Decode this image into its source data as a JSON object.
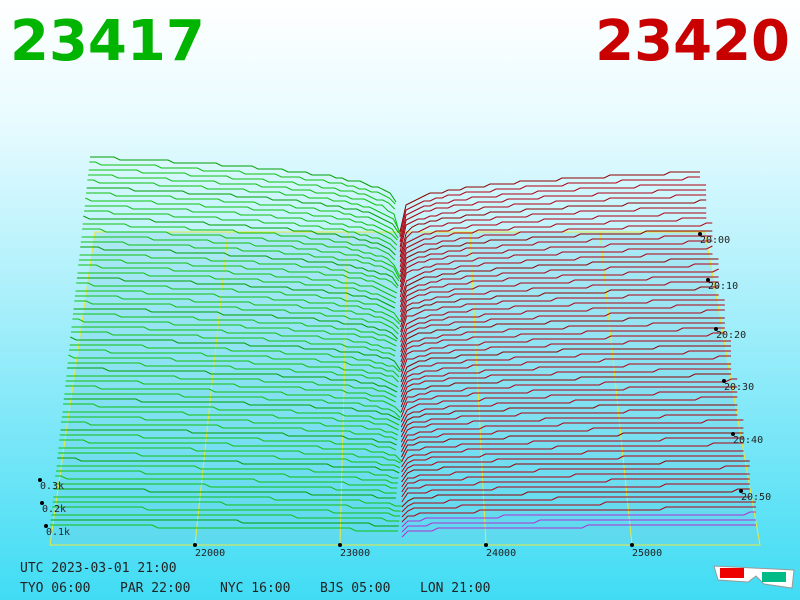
{
  "header": {
    "bid": "23417",
    "ask": "23420"
  },
  "axes": {
    "price_labels": [
      "22000",
      "23000",
      "24000",
      "25000"
    ],
    "depth_labels": [
      "0.3k",
      "0.2k",
      "0.1k"
    ],
    "time_labels": [
      "20:00",
      "20:10",
      "20:20",
      "20:30",
      "20:40",
      "20:50"
    ]
  },
  "footer": {
    "utc": "UTC 2023-03-01 21:00",
    "clocks": [
      "TYO 06:00",
      "PAR 22:00",
      "NYC 16:00",
      "BJS 05:00",
      "LON 21:00"
    ]
  }
}
